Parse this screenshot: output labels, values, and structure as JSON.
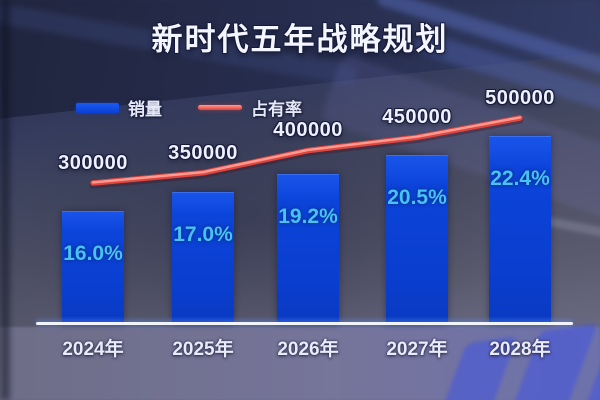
{
  "title": "新时代五年战略规划",
  "legend": {
    "items": [
      {
        "label": "销量",
        "swatch": "bar",
        "color": "#0b46e0"
      },
      {
        "label": "占有率",
        "swatch": "line",
        "color": "#e2463e"
      }
    ]
  },
  "chart_data": {
    "type": "bar",
    "title": "新时代五年战略规划",
    "categories": [
      "2024年",
      "2025年",
      "2026年",
      "2027年",
      "2028年"
    ],
    "series": [
      {
        "name": "销量",
        "chart": "bar",
        "values": [
          300000,
          350000,
          400000,
          450000,
          500000
        ],
        "data_labels": [
          "300000",
          "350000",
          "400000",
          "450000",
          "500000"
        ],
        "color": "#0b42d6"
      },
      {
        "name": "占有率",
        "chart": "line",
        "unit": "%",
        "values": [
          16.0,
          17.0,
          19.2,
          20.5,
          22.4
        ],
        "data_labels": [
          "16.0%",
          "17.0%",
          "19.2%",
          "20.5%",
          "22.4%"
        ],
        "color": "#e2463e"
      }
    ],
    "legend_position": "top-left",
    "grid": false,
    "y_axis_visible": false,
    "x_axis_line": true,
    "value_label_position": "above-bars",
    "share_label_position": "inside-bars"
  },
  "colors": {
    "bar": "#0b42d6",
    "line": "#e2463e",
    "line_highlight": "#ff9b92",
    "percent_text": "#48c2f2",
    "value_text": "#eef1fd",
    "axis_line": "#f1f4fb",
    "background_top": "#272c48",
    "background_bottom": "#73738e"
  }
}
